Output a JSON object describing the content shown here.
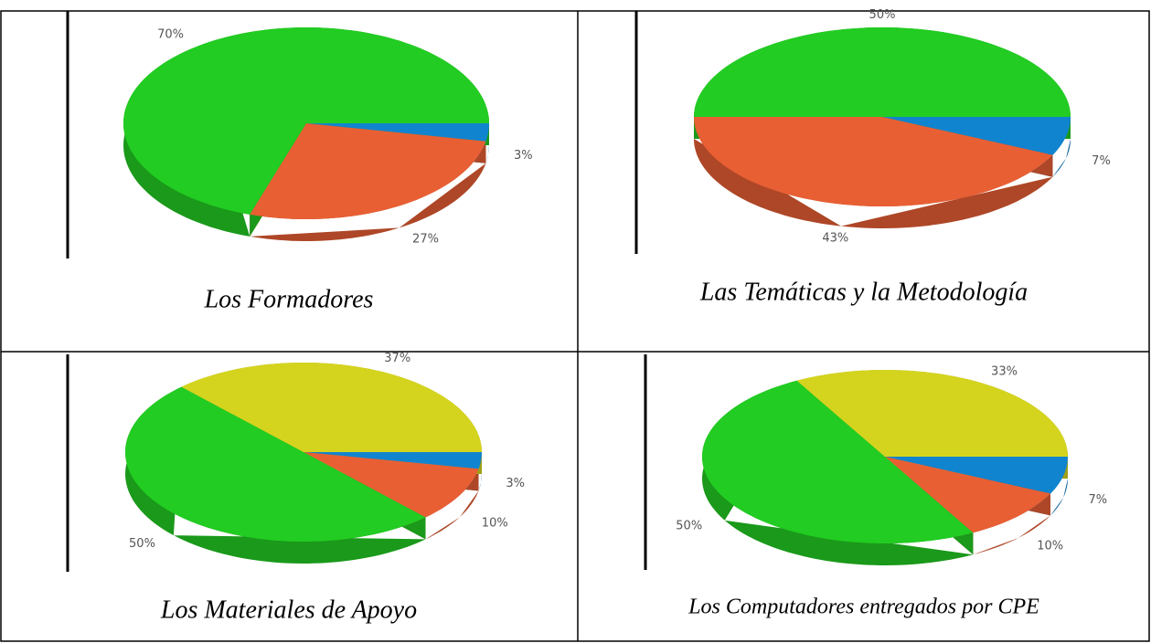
{
  "chart_data": [
    {
      "type": "pie",
      "title": "Los Formadores",
      "values": [
        3,
        27,
        70
      ],
      "value_labels": [
        "3%",
        "27%",
        "70%"
      ],
      "colors": [
        "#1184cf",
        "#e85f34",
        "#22cc22"
      ]
    },
    {
      "type": "pie",
      "title": "Las Temáticas y la Metodología",
      "values": [
        7,
        43,
        50
      ],
      "value_labels": [
        "7%",
        "43%",
        "50%"
      ],
      "colors": [
        "#1184cf",
        "#e85f34",
        "#22cc22"
      ]
    },
    {
      "type": "pie",
      "title": "Los Materiales de Apoyo",
      "values": [
        3,
        10,
        50,
        37
      ],
      "value_labels": [
        "3%",
        "10%",
        "50%",
        "37%"
      ],
      "colors": [
        "#1184cf",
        "#e85f34",
        "#22cc22",
        "#d4d41e"
      ]
    },
    {
      "type": "pie",
      "title": "Los Computadores entregados por CPE",
      "values": [
        7,
        10,
        50,
        33
      ],
      "value_labels": [
        "7%",
        "10%",
        "50%",
        "33%"
      ],
      "colors": [
        "#1184cf",
        "#e85f34",
        "#22cc22",
        "#d4d41e"
      ]
    }
  ]
}
